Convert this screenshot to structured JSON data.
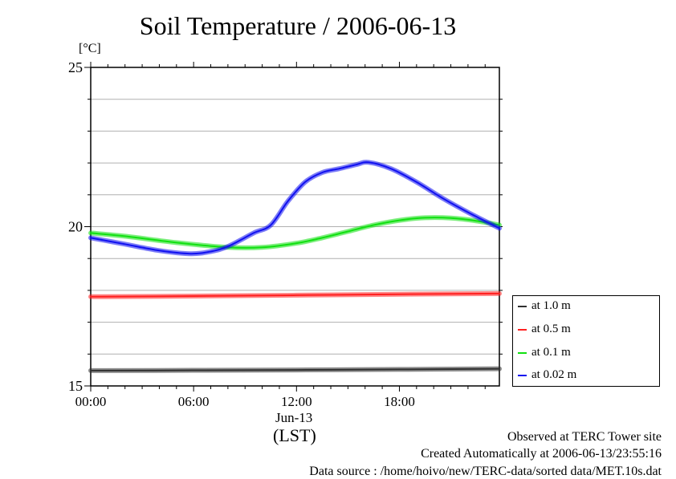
{
  "chart_data": {
    "type": "line",
    "title": "Soil Temperature / 2006-06-13",
    "ylabel": "[°C]",
    "xlabel": "(LST)",
    "x_date_label": "Jun-13",
    "ylim": [
      15,
      25
    ],
    "xlim_hours": [
      0,
      23.83
    ],
    "yticks": [
      15,
      20,
      25
    ],
    "ygrid_step": 1,
    "xticks": [
      {
        "hour": 0,
        "label": "00:00"
      },
      {
        "hour": 6,
        "label": "06:00"
      },
      {
        "hour": 12,
        "label": "12:00"
      },
      {
        "hour": 18,
        "label": "18:00"
      }
    ],
    "grid": true,
    "legend_position": "right-bottom",
    "series": [
      {
        "name": "at 1.0 m",
        "color": "#303030",
        "x": [
          0,
          6,
          12,
          18,
          23.83
        ],
        "values": [
          15.48,
          15.49,
          15.5,
          15.52,
          15.54
        ]
      },
      {
        "name": "at 0.5 m",
        "color": "#ff2020",
        "x": [
          0,
          6,
          12,
          18,
          23.83
        ],
        "values": [
          17.8,
          17.82,
          17.85,
          17.88,
          17.9
        ]
      },
      {
        "name": "at 0.1 m",
        "color": "#10e010",
        "x": [
          0,
          2,
          5,
          8,
          10,
          12,
          13.5,
          15,
          16.5,
          18,
          19.5,
          21,
          22.5,
          23.83
        ],
        "values": [
          19.8,
          19.7,
          19.5,
          19.35,
          19.35,
          19.48,
          19.65,
          19.85,
          20.05,
          20.2,
          20.28,
          20.27,
          20.18,
          20.05
        ]
      },
      {
        "name": "at 0.02 m",
        "color": "#1010f0",
        "x": [
          0,
          2,
          4,
          5.8,
          7,
          8,
          9.5,
          10.5,
          11.5,
          12.5,
          13.5,
          14.5,
          15.5,
          16.2,
          17.5,
          19,
          20.5,
          22,
          23.83
        ],
        "values": [
          19.65,
          19.45,
          19.25,
          19.15,
          19.22,
          19.38,
          19.8,
          20.05,
          20.8,
          21.4,
          21.7,
          21.82,
          21.95,
          22.02,
          21.82,
          21.4,
          20.9,
          20.45,
          19.95
        ]
      }
    ]
  },
  "footer": {
    "site": "Observed at TERC Tower site",
    "created": "Created Automatically at 2006-06-13/23:55:16",
    "source": "Data source : /home/hoivo/new/TERC-data/sorted  data/MET.10s.dat"
  }
}
